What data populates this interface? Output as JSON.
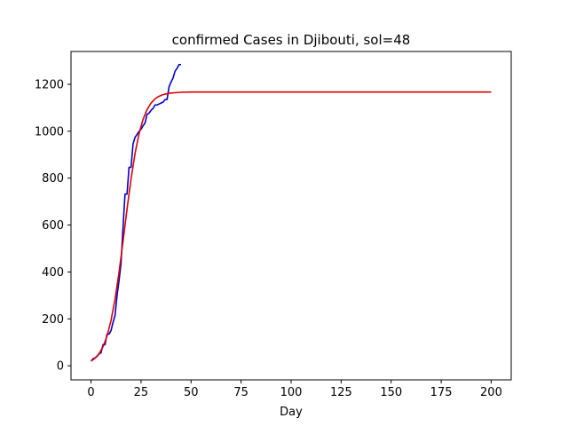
{
  "chart_data": {
    "type": "line",
    "title": "confirmed Cases in Djibouti, sol=48",
    "xlabel": "Day",
    "ylabel": "",
    "xlim": [
      -10,
      210
    ],
    "ylim": [
      -60,
      1340
    ],
    "xticks": [
      0,
      25,
      50,
      75,
      100,
      125,
      150,
      175,
      200
    ],
    "yticks": [
      0,
      200,
      400,
      600,
      800,
      1000,
      1200
    ],
    "grid": false,
    "series": [
      {
        "color": "#0000cc",
        "x": [
          0,
          1,
          2,
          3,
          4,
          5,
          6,
          7,
          8,
          9,
          10,
          11,
          12,
          13,
          14,
          15,
          16,
          17,
          18,
          19,
          20,
          21,
          22,
          23,
          24,
          25,
          26,
          27,
          28,
          29,
          30,
          31,
          32,
          33,
          34,
          35,
          36,
          37,
          38,
          39,
          40,
          41,
          42,
          43,
          44,
          45
        ],
        "y": [
          20,
          30,
          33,
          40,
          50,
          55,
          90,
          90,
          135,
          135,
          150,
          185,
          214,
          298,
          363,
          435,
          591,
          732,
          732,
          846,
          846,
          945,
          974,
          986,
          999,
          1008,
          1023,
          1035,
          1072,
          1077,
          1089,
          1097,
          1112,
          1112,
          1116,
          1120,
          1124,
          1135,
          1135,
          1189,
          1210,
          1227,
          1256,
          1268,
          1284,
          1284
        ]
      },
      {
        "color": "#dd0000",
        "x": [
          0,
          2,
          4,
          6,
          8,
          10,
          12,
          14,
          16,
          18,
          20,
          22,
          24,
          26,
          28,
          30,
          32,
          34,
          36,
          38,
          40,
          45,
          50,
          60,
          80,
          100,
          150,
          200
        ],
        "y": [
          20,
          32,
          51,
          81,
          126,
          193,
          283,
          398,
          530,
          668,
          796,
          905,
          989,
          1050,
          1092,
          1120,
          1138,
          1149,
          1156,
          1160,
          1163,
          1166,
          1167,
          1167,
          1167,
          1167,
          1167,
          1167
        ]
      }
    ]
  }
}
